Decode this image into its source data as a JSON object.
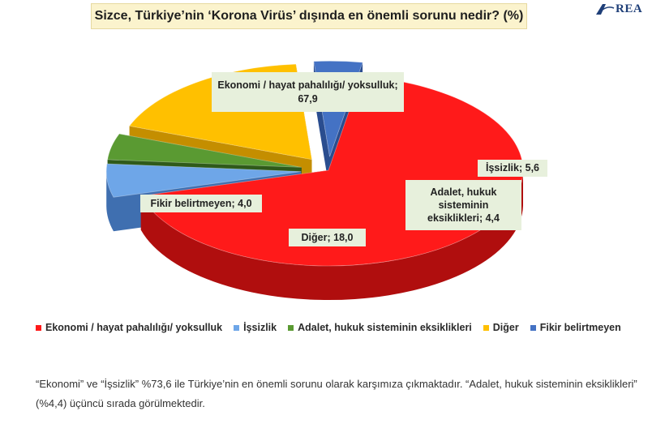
{
  "title": "Sizce, Türkiye’nin ‘Korona Virüs’ dışında en önemli sorunu nedir? (%)",
  "logo_text": "REA",
  "chart_data": {
    "type": "pie",
    "title": "Sizce, Türkiye’nin ‘Korona Virüs’ dışında en önemli sorunu nedir? (%)",
    "slices": [
      {
        "label": "Ekonomi / hayat pahalılığı/ yoksulluk",
        "callout": "Ekonomi / hayat pahalılığı/ yoksulluk; 67,9",
        "value": 67.9,
        "color": "#ff1a1a",
        "dark": "#b00e0e",
        "explode": 0
      },
      {
        "label": "İşsizlik",
        "callout": "İşsizlik; 5,6",
        "value": 5.6,
        "color": "#6ea6e8",
        "dark": "#3f6fb0",
        "explode": 1
      },
      {
        "label": "Adalet, hukuk sisteminin eksiklikleri",
        "callout": "Adalet, hukuk sisteminin eksiklikleri; 4,4",
        "value": 4.4,
        "color": "#5a9a32",
        "dark": "#2f5a1a",
        "explode": 1
      },
      {
        "label": "Diğer",
        "callout": "Diğer; 18,0",
        "value": 18.0,
        "color": "#ffc000",
        "dark": "#c48e00",
        "explode": 1
      },
      {
        "label": "Fikir belirtmeyen",
        "callout": "Fikir belirtmeyen; 4,0",
        "value": 4.0,
        "color": "#4472c4",
        "dark": "#2a4d8f",
        "explode": 1
      }
    ],
    "legend_position": "bottom"
  },
  "caption": "“Ekonomi” ve “İşsizlik” %73,6 ile Türkiye’nin en önemli sorunu olarak karşımıza çıkmaktadır. “Adalet, hukuk sisteminin eksiklikleri” (%4,4) üçüncü sırada görülmektedir."
}
